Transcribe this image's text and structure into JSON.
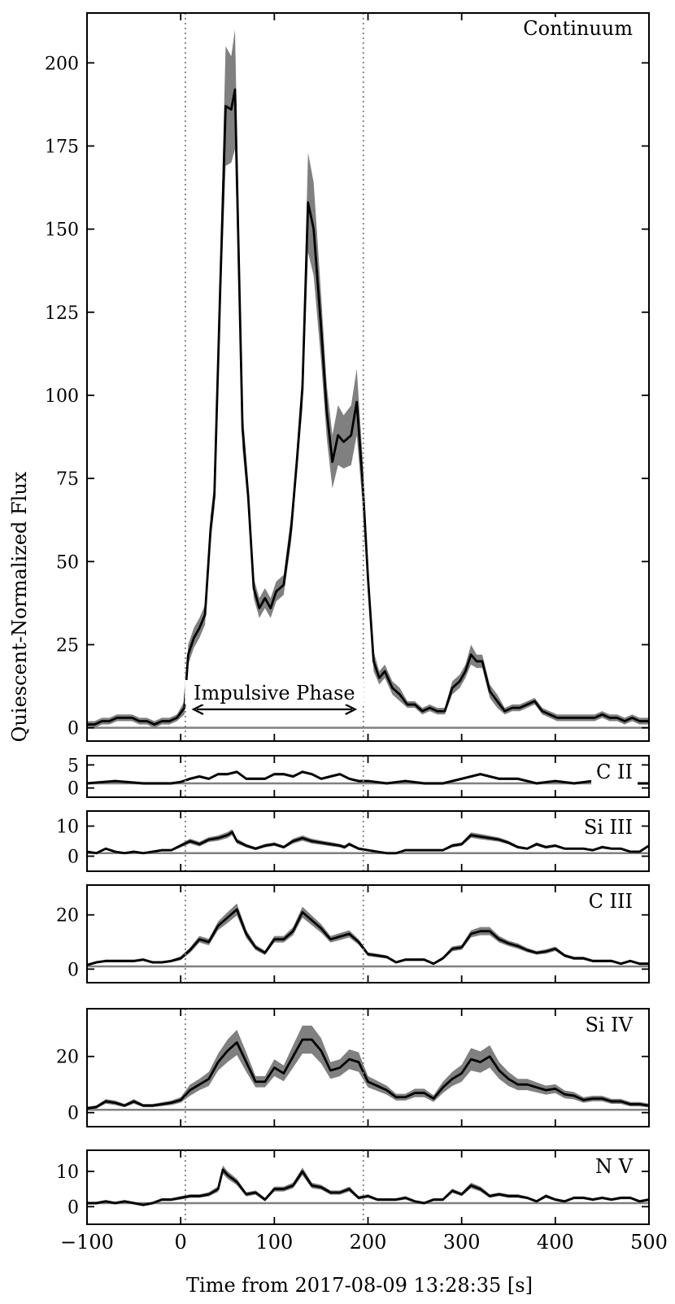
{
  "figure": {
    "ylabel": "Quiescent-Normalized Flux",
    "xlabel": "Time from 2017-08-09 13:28:35 [s]",
    "x_ticks": [
      -100,
      0,
      100,
      200,
      300,
      400,
      500
    ],
    "x_tick_labels": [
      "−100",
      "0",
      "100",
      "200",
      "300",
      "400",
      "500"
    ],
    "annotation": "Impulsive Phase",
    "vlines": [
      5,
      195
    ],
    "colors": {
      "line": "#000000",
      "band": "#808080",
      "baseline": "#808080",
      "vline": "#808080"
    }
  },
  "chart_data": [
    {
      "type": "line",
      "label": "Continuum",
      "xlim": [
        -100,
        500
      ],
      "ylim": [
        -4,
        215
      ],
      "yticks": [
        0,
        25,
        50,
        75,
        100,
        125,
        150,
        175,
        200
      ],
      "baseline": 0,
      "x": [
        -100,
        -92,
        -84,
        -76,
        -68,
        -60,
        -52,
        -44,
        -36,
        -28,
        -20,
        -12,
        -4,
        4,
        8,
        14,
        20,
        26,
        32,
        36,
        42,
        48,
        54,
        58,
        66,
        72,
        78,
        84,
        90,
        96,
        102,
        110,
        118,
        124,
        130,
        136,
        142,
        150,
        156,
        162,
        168,
        174,
        182,
        188,
        194,
        200,
        206,
        212,
        218,
        226,
        234,
        242,
        250,
        258,
        266,
        274,
        282,
        290,
        298,
        304,
        310,
        316,
        322,
        330,
        338,
        346,
        354,
        362,
        370,
        378,
        386,
        394,
        402,
        410,
        418,
        426,
        434,
        442,
        450,
        458,
        466,
        474,
        482,
        490,
        500
      ],
      "y": [
        1,
        1,
        2,
        2,
        3,
        3,
        3,
        2,
        2,
        1,
        2,
        2,
        3,
        6,
        22,
        27,
        30,
        34,
        60,
        70,
        130,
        187,
        186,
        192,
        90,
        70,
        42,
        36,
        39,
        36,
        41,
        43,
        60,
        80,
        102,
        158,
        150,
        120,
        95,
        80,
        88,
        86,
        88,
        98,
        75,
        45,
        20,
        15,
        17,
        12,
        10,
        7,
        7,
        5,
        6,
        5,
        5,
        12,
        14,
        17,
        22,
        20,
        20,
        11,
        8,
        5,
        6,
        6,
        7,
        8,
        5,
        4,
        3,
        3,
        3,
        3,
        3,
        3,
        4,
        3,
        3,
        2,
        3,
        2,
        2
      ],
      "err": [
        1,
        1,
        1,
        1,
        1,
        1,
        1,
        1,
        1,
        1,
        1,
        1,
        1,
        2,
        3,
        3,
        3,
        3,
        4,
        4,
        8,
        18,
        16,
        18,
        6,
        4,
        3,
        3,
        3,
        3,
        3,
        3,
        4,
        4,
        6,
        15,
        14,
        10,
        8,
        8,
        9,
        8,
        9,
        10,
        7,
        4,
        3,
        2,
        2,
        2,
        2,
        1,
        1,
        1,
        1,
        1,
        1,
        2,
        2,
        2,
        3,
        2,
        2,
        2,
        2,
        1,
        1,
        1,
        1,
        1,
        1,
        1,
        1,
        1,
        1,
        1,
        1,
        1,
        1,
        1,
        1,
        1,
        1,
        1,
        1
      ]
    },
    {
      "type": "line",
      "label": "C II",
      "xlim": [
        -100,
        500
      ],
      "ylim": [
        -2,
        7
      ],
      "yticks": [
        0,
        5
      ],
      "baseline": 1,
      "x": [
        -100,
        -70,
        -40,
        -10,
        0,
        10,
        20,
        30,
        40,
        50,
        60,
        70,
        80,
        90,
        100,
        110,
        120,
        130,
        140,
        150,
        160,
        170,
        180,
        190,
        200,
        220,
        240,
        260,
        280,
        300,
        320,
        340,
        360,
        380,
        400,
        420,
        440,
        460,
        480,
        500
      ],
      "y": [
        1,
        1.5,
        1,
        1,
        1.3,
        2,
        2.5,
        2,
        3,
        3,
        3.5,
        2,
        2,
        2,
        3,
        3,
        2.5,
        3.5,
        3,
        2,
        2.5,
        3,
        2,
        1.5,
        1.5,
        1,
        1.5,
        1,
        1,
        2,
        3,
        2,
        2,
        1,
        1.5,
        1,
        1.5,
        1,
        1,
        1
      ],
      "err": [
        0.3,
        0.3,
        0.3,
        0.3,
        0.3,
        0.3,
        0.3,
        0.3,
        0.3,
        0.3,
        0.3,
        0.3,
        0.3,
        0.3,
        0.3,
        0.3,
        0.3,
        0.3,
        0.3,
        0.3,
        0.3,
        0.3,
        0.3,
        0.3,
        0.3,
        0.3,
        0.3,
        0.3,
        0.3,
        0.3,
        0.3,
        0.3,
        0.3,
        0.3,
        0.3,
        0.3,
        0.3,
        0.3,
        0.3,
        0.3
      ]
    },
    {
      "type": "line",
      "label": "Si III",
      "xlim": [
        -100,
        500
      ],
      "ylim": [
        -5,
        15
      ],
      "yticks": [
        0,
        10
      ],
      "baseline": 1,
      "x": [
        -100,
        -90,
        -80,
        -70,
        -60,
        -50,
        -40,
        -30,
        -20,
        -10,
        0,
        10,
        20,
        30,
        40,
        50,
        55,
        60,
        70,
        80,
        90,
        100,
        110,
        120,
        130,
        140,
        150,
        160,
        170,
        175,
        180,
        190,
        200,
        210,
        220,
        230,
        240,
        250,
        260,
        270,
        280,
        290,
        300,
        310,
        320,
        330,
        340,
        350,
        360,
        370,
        380,
        390,
        400,
        410,
        420,
        430,
        440,
        450,
        460,
        470,
        480,
        490,
        500
      ],
      "y": [
        1.5,
        1,
        2.5,
        1.5,
        1,
        1.5,
        1,
        1.5,
        2,
        2,
        3.5,
        5,
        4,
        5.5,
        6,
        7,
        8,
        5,
        3.5,
        2.5,
        3.5,
        4,
        3,
        5,
        6,
        5,
        4.5,
        4,
        3.5,
        3,
        4,
        2.5,
        2,
        1.5,
        1,
        1,
        2,
        2,
        2,
        2,
        2,
        3.5,
        4,
        7,
        6.5,
        6,
        5.5,
        4.5,
        3,
        2.5,
        4,
        3,
        3.5,
        2.5,
        2.5,
        2.5,
        2,
        3,
        2.5,
        2.5,
        1.5,
        1.5,
        3.5
      ],
      "err": [
        0.4,
        0.4,
        0.4,
        0.4,
        0.4,
        0.4,
        0.4,
        0.4,
        0.4,
        0.4,
        0.6,
        0.8,
        0.8,
        0.8,
        0.9,
        1,
        1,
        0.8,
        0.6,
        0.5,
        0.6,
        0.6,
        0.5,
        0.8,
        0.9,
        0.8,
        0.7,
        0.7,
        0.6,
        0.6,
        0.6,
        0.5,
        0.4,
        0.4,
        0.4,
        0.4,
        0.4,
        0.4,
        0.4,
        0.4,
        0.4,
        0.6,
        0.6,
        0.9,
        0.9,
        0.8,
        0.7,
        0.6,
        0.5,
        0.4,
        0.6,
        0.5,
        0.5,
        0.4,
        0.4,
        0.4,
        0.4,
        0.5,
        0.4,
        0.4,
        0.4,
        0.4,
        0.5
      ]
    },
    {
      "type": "line",
      "label": "C III",
      "xlim": [
        -100,
        500
      ],
      "ylim": [
        -5,
        31
      ],
      "yticks": [
        0,
        20
      ],
      "baseline": 1,
      "x": [
        -100,
        -90,
        -80,
        -70,
        -60,
        -50,
        -40,
        -30,
        -20,
        -10,
        0,
        10,
        20,
        30,
        40,
        50,
        60,
        70,
        80,
        90,
        100,
        110,
        120,
        130,
        140,
        150,
        160,
        170,
        180,
        190,
        200,
        210,
        220,
        230,
        240,
        250,
        260,
        270,
        280,
        290,
        300,
        310,
        320,
        330,
        340,
        350,
        360,
        370,
        380,
        390,
        400,
        410,
        420,
        430,
        440,
        450,
        460,
        470,
        480,
        490,
        500
      ],
      "y": [
        1.5,
        2.5,
        3,
        3,
        3,
        3,
        3.5,
        2.5,
        2.5,
        3,
        4,
        7,
        11,
        10,
        16,
        19,
        22,
        13,
        8,
        6,
        11,
        11,
        14,
        21,
        18,
        15,
        11,
        12,
        13,
        10,
        5.5,
        5,
        4.5,
        2.5,
        3.5,
        3.5,
        3.5,
        2,
        4,
        7.5,
        8,
        13,
        14,
        14,
        11,
        9.5,
        8.5,
        7,
        6,
        6.5,
        7.5,
        5,
        4,
        4,
        3,
        3,
        3,
        2,
        3,
        2,
        2
      ],
      "err": [
        0.5,
        0.5,
        0.5,
        0.5,
        0.5,
        0.5,
        0.5,
        0.5,
        0.5,
        0.5,
        0.7,
        1,
        1.2,
        1.2,
        1.6,
        2,
        2.2,
        1.5,
        1,
        0.8,
        1.2,
        1.2,
        1.5,
        2,
        1.8,
        1.6,
        1.2,
        1.3,
        1.3,
        1,
        0.7,
        0.7,
        0.6,
        0.5,
        0.5,
        0.5,
        0.5,
        0.5,
        0.6,
        0.9,
        0.9,
        1.3,
        1.5,
        1.5,
        1.2,
        1,
        1,
        0.8,
        0.7,
        0.8,
        0.8,
        0.6,
        0.6,
        0.6,
        0.5,
        0.5,
        0.5,
        0.5,
        0.5,
        0.5,
        0.5
      ]
    },
    {
      "type": "line",
      "label": "Si IV",
      "xlim": [
        -100,
        500
      ],
      "ylim": [
        -5,
        37
      ],
      "yticks": [
        0,
        20
      ],
      "baseline": 1,
      "x": [
        -100,
        -90,
        -80,
        -70,
        -60,
        -50,
        -40,
        -30,
        -20,
        -10,
        0,
        10,
        20,
        30,
        40,
        50,
        60,
        70,
        80,
        90,
        100,
        110,
        120,
        130,
        140,
        150,
        160,
        170,
        180,
        190,
        200,
        210,
        220,
        230,
        240,
        250,
        260,
        270,
        280,
        290,
        300,
        310,
        320,
        330,
        340,
        350,
        360,
        370,
        380,
        390,
        400,
        410,
        420,
        430,
        440,
        450,
        460,
        470,
        480,
        490,
        500
      ],
      "y": [
        1.5,
        2,
        4,
        3.5,
        2.5,
        4,
        2.5,
        2.5,
        3,
        3.5,
        4.5,
        8,
        10,
        12,
        18,
        22,
        25,
        18,
        11,
        11,
        16,
        14,
        20,
        26,
        26,
        22,
        15,
        16,
        19,
        18,
        11,
        9.5,
        8,
        5.5,
        5.5,
        7,
        7,
        5,
        9,
        12,
        14,
        19,
        18,
        20,
        15,
        12,
        10,
        10,
        9,
        8,
        8.5,
        6.5,
        6,
        4.5,
        5,
        5,
        4,
        4,
        3,
        3,
        2.5
      ],
      "err": [
        0.6,
        0.6,
        0.8,
        0.8,
        0.6,
        0.8,
        0.6,
        0.6,
        0.7,
        0.8,
        1,
        2,
        2,
        2.5,
        3,
        4,
        4.5,
        3.5,
        2,
        2,
        3,
        2.8,
        4,
        5,
        5,
        4.5,
        3,
        3,
        3.5,
        3.5,
        2,
        1.8,
        1.6,
        1.2,
        1.2,
        1.5,
        1.5,
        1.2,
        2,
        2.5,
        3,
        4,
        3.8,
        4,
        3,
        2.5,
        2,
        2,
        1.8,
        1.6,
        1.6,
        1.4,
        1.3,
        1,
        1,
        1,
        0.9,
        0.9,
        0.8,
        0.8,
        0.7
      ]
    },
    {
      "type": "line",
      "label": "N V",
      "xlim": [
        -100,
        500
      ],
      "ylim": [
        -5,
        16
      ],
      "yticks": [
        0,
        10
      ],
      "baseline": 1,
      "x": [
        -100,
        -90,
        -80,
        -70,
        -60,
        -50,
        -40,
        -30,
        -20,
        -10,
        0,
        10,
        20,
        30,
        40,
        45,
        50,
        60,
        70,
        80,
        90,
        100,
        110,
        120,
        130,
        140,
        150,
        160,
        170,
        180,
        190,
        200,
        210,
        220,
        230,
        240,
        250,
        260,
        270,
        280,
        290,
        300,
        310,
        320,
        330,
        340,
        350,
        360,
        370,
        380,
        390,
        400,
        410,
        420,
        430,
        440,
        450,
        460,
        470,
        480,
        490,
        500
      ],
      "y": [
        1,
        1,
        1.5,
        1,
        1.5,
        1,
        0.5,
        1,
        2,
        2,
        2.5,
        3,
        3,
        3.5,
        5,
        10.5,
        9,
        7,
        3.5,
        4,
        2,
        5,
        5,
        6,
        10,
        6,
        5.5,
        4,
        4,
        5,
        2.5,
        3,
        2,
        2,
        2,
        2.5,
        1.5,
        1,
        2,
        2,
        4.5,
        3.5,
        6,
        5,
        3,
        3.5,
        3,
        3,
        2.5,
        1.5,
        3,
        2,
        1.5,
        2.5,
        2.5,
        2,
        2.5,
        2,
        2.5,
        2.5,
        1.5,
        2
      ],
      "err": [
        0.4,
        0.4,
        0.4,
        0.4,
        0.4,
        0.4,
        0.4,
        0.4,
        0.4,
        0.4,
        0.5,
        0.5,
        0.5,
        0.6,
        0.8,
        1.2,
        1.1,
        0.9,
        0.6,
        0.6,
        0.5,
        0.7,
        0.7,
        0.8,
        1.1,
        0.8,
        0.7,
        0.6,
        0.6,
        0.7,
        0.5,
        0.5,
        0.4,
        0.4,
        0.4,
        0.5,
        0.4,
        0.4,
        0.4,
        0.4,
        0.6,
        0.5,
        0.8,
        0.7,
        0.5,
        0.5,
        0.5,
        0.5,
        0.4,
        0.4,
        0.5,
        0.4,
        0.4,
        0.4,
        0.4,
        0.4,
        0.4,
        0.4,
        0.4,
        0.4,
        0.4,
        0.4
      ]
    }
  ]
}
